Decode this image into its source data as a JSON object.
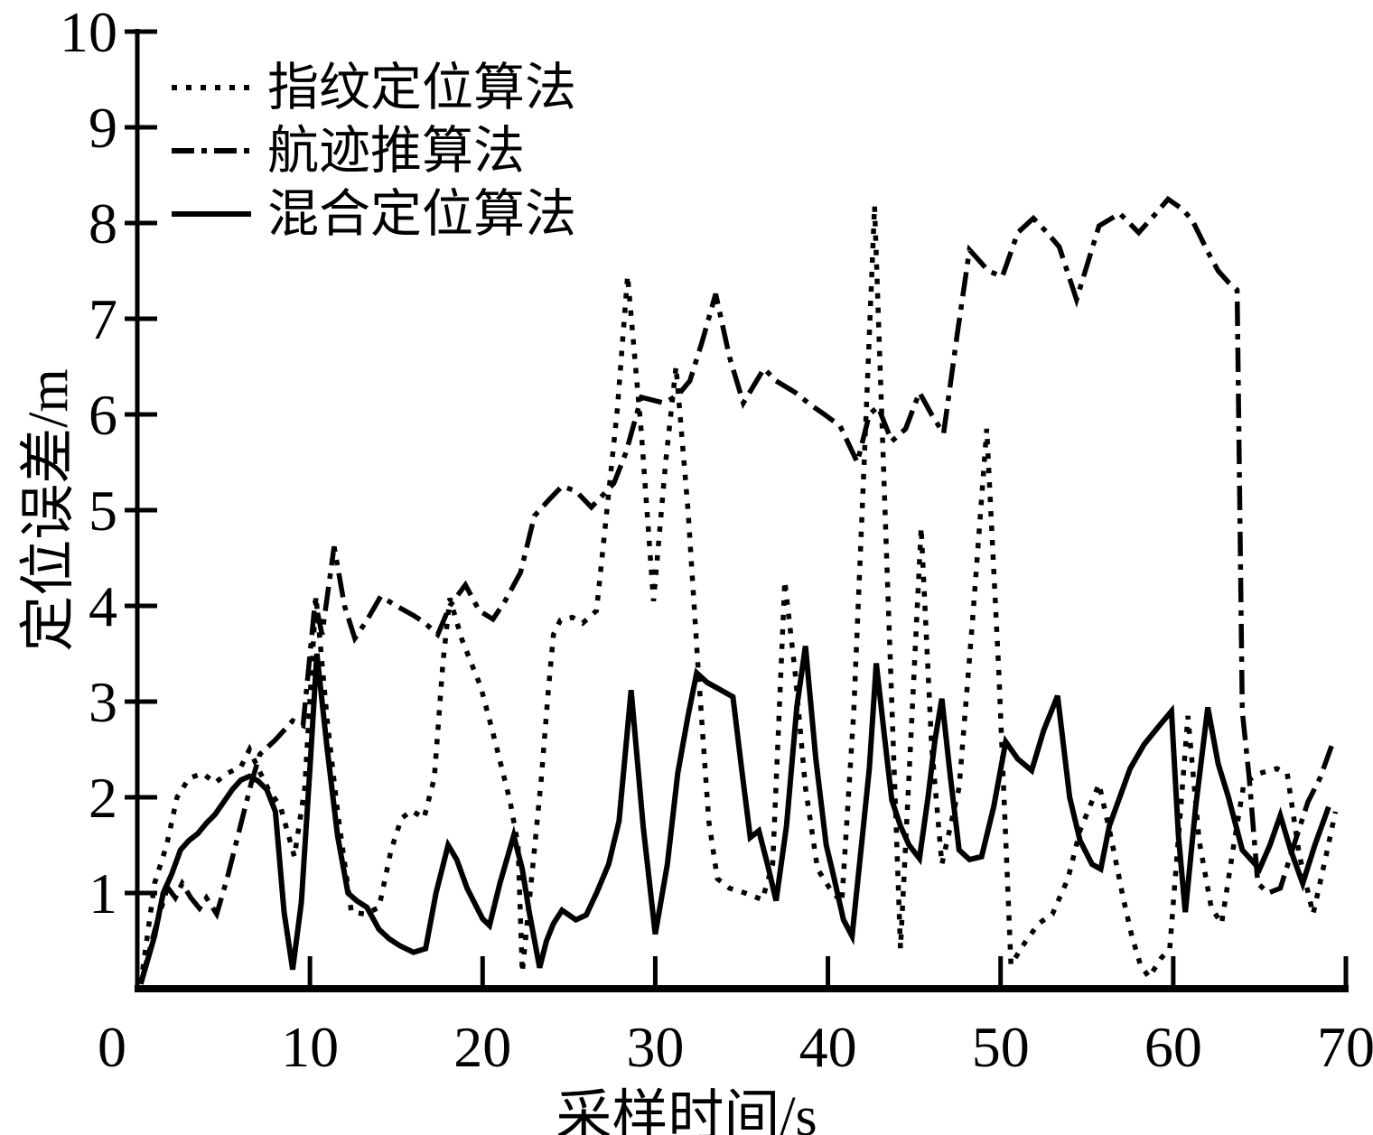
{
  "figure": {
    "background": "#ffffff",
    "line_color": "#000000"
  },
  "chart_data": {
    "type": "line",
    "title": "",
    "xlabel": "采样时间/s",
    "ylabel": "定位误差/m",
    "xlim": [
      0,
      70
    ],
    "ylim": [
      0,
      10
    ],
    "xticks": [
      0,
      10,
      20,
      30,
      40,
      50,
      60,
      70
    ],
    "yticks": [
      1,
      2,
      3,
      4,
      5,
      6,
      7,
      8,
      9,
      10
    ],
    "grid": false,
    "legend_position": "top-left",
    "series": [
      {
        "name": "指纹定位算法",
        "style": "dotted",
        "points": [
          [
            0.2,
            0.05
          ],
          [
            1,
            1.1
          ],
          [
            1.7,
            1.5
          ],
          [
            2.3,
            2.0
          ],
          [
            3,
            2.2
          ],
          [
            3.8,
            2.25
          ],
          [
            4.5,
            2.15
          ],
          [
            5.2,
            2.25
          ],
          [
            6,
            2.32
          ],
          [
            6.5,
            2.5
          ],
          [
            7,
            2.3
          ],
          [
            7.6,
            2.08
          ],
          [
            8.3,
            1.9
          ],
          [
            9.1,
            1.38
          ],
          [
            9.7,
            2.1
          ],
          [
            10.35,
            4.1
          ],
          [
            11,
            2.8
          ],
          [
            11.6,
            1.85
          ],
          [
            12.4,
            0.8
          ],
          [
            13.2,
            0.78
          ],
          [
            14,
            0.85
          ],
          [
            14.7,
            1.45
          ],
          [
            15.3,
            1.78
          ],
          [
            15.9,
            1.86
          ],
          [
            16.6,
            1.78
          ],
          [
            17.2,
            2.2
          ],
          [
            17.7,
            3.4
          ],
          [
            18.1,
            4.08
          ],
          [
            18.8,
            3.65
          ],
          [
            19.9,
            3.15
          ],
          [
            20.7,
            2.6
          ],
          [
            21.6,
            1.95
          ],
          [
            22.05,
            1.5
          ],
          [
            22.3,
            0.17
          ],
          [
            22.75,
            1.0
          ],
          [
            23,
            1.45
          ],
          [
            23.4,
            2.2
          ],
          [
            23.8,
            3.1
          ],
          [
            24.1,
            3.7
          ],
          [
            24.5,
            3.85
          ],
          [
            25.2,
            3.88
          ],
          [
            25.8,
            3.82
          ],
          [
            26.6,
            3.95
          ],
          [
            27.2,
            5.0
          ],
          [
            27.8,
            6.05
          ],
          [
            28.4,
            7.45
          ],
          [
            29.2,
            5.8
          ],
          [
            29.9,
            4.05
          ],
          [
            30.6,
            5.5
          ],
          [
            31.2,
            6.5
          ],
          [
            31.9,
            5.0
          ],
          [
            32.5,
            3.3
          ],
          [
            33.1,
            1.75
          ],
          [
            33.6,
            1.15
          ],
          [
            34.3,
            1.05
          ],
          [
            35.2,
            1.0
          ],
          [
            36.2,
            0.93
          ],
          [
            36.8,
            1.3
          ],
          [
            37.5,
            4.26
          ],
          [
            38.1,
            3.3
          ],
          [
            38.7,
            2.1
          ],
          [
            39.4,
            1.25
          ],
          [
            40.1,
            1.05
          ],
          [
            40.8,
            0.9
          ],
          [
            41.5,
            2.9
          ],
          [
            42.1,
            5.5
          ],
          [
            42.7,
            8.18
          ],
          [
            43.4,
            4.5
          ],
          [
            44.2,
            0.42
          ],
          [
            44.8,
            2.6
          ],
          [
            45.4,
            4.82
          ],
          [
            46,
            2.55
          ],
          [
            46.6,
            1.3
          ],
          [
            47.6,
            2.1
          ],
          [
            48.4,
            3.9
          ],
          [
            49.2,
            5.85
          ],
          [
            49.9,
            3.3
          ],
          [
            50.6,
            0.25
          ],
          [
            51.4,
            0.48
          ],
          [
            52.2,
            0.68
          ],
          [
            53,
            0.78
          ],
          [
            53.9,
            1.15
          ],
          [
            54.6,
            1.65
          ],
          [
            55.7,
            2.14
          ],
          [
            56.4,
            1.58
          ],
          [
            57.1,
            0.95
          ],
          [
            57.6,
            0.55
          ],
          [
            58.1,
            0.25
          ],
          [
            58.6,
            0.12
          ],
          [
            59.3,
            0.32
          ],
          [
            59.8,
            0.42
          ],
          [
            60.85,
            2.85
          ],
          [
            61.5,
            1.55
          ],
          [
            62.2,
            0.85
          ],
          [
            62.8,
            0.68
          ],
          [
            63.5,
            1.5
          ],
          [
            64.1,
            2.15
          ],
          [
            65,
            2.25
          ],
          [
            66,
            2.3
          ],
          [
            66.6,
            2.25
          ],
          [
            67.3,
            1.4
          ],
          [
            68.1,
            0.78
          ],
          [
            68.8,
            1.35
          ],
          [
            69.4,
            1.85
          ]
        ]
      },
      {
        "name": "航迹推算法",
        "style": "dashdot",
        "points": [
          [
            0.2,
            0.05
          ],
          [
            1,
            0.6
          ],
          [
            1.75,
            1.06
          ],
          [
            2.2,
            0.95
          ],
          [
            2.6,
            1.1
          ],
          [
            3.1,
            0.95
          ],
          [
            3.6,
            0.84
          ],
          [
            4,
            0.95
          ],
          [
            4.6,
            0.78
          ],
          [
            5.2,
            1.15
          ],
          [
            5.9,
            1.65
          ],
          [
            6.6,
            2.15
          ],
          [
            7.1,
            2.45
          ],
          [
            8,
            2.6
          ],
          [
            9,
            2.8
          ],
          [
            9.6,
            2.75
          ],
          [
            10.3,
            4.05
          ],
          [
            10.7,
            3.7
          ],
          [
            11.4,
            4.62
          ],
          [
            12,
            4.0
          ],
          [
            12.6,
            3.66
          ],
          [
            13.3,
            3.85
          ],
          [
            14.1,
            4.1
          ],
          [
            15,
            4.0
          ],
          [
            16,
            3.9
          ],
          [
            16.6,
            3.83
          ],
          [
            17.4,
            3.7
          ],
          [
            18.1,
            4.0
          ],
          [
            19,
            4.22
          ],
          [
            19.8,
            3.95
          ],
          [
            20.6,
            3.86
          ],
          [
            21.3,
            4.05
          ],
          [
            22.2,
            4.35
          ],
          [
            23,
            4.94
          ],
          [
            23.8,
            5.1
          ],
          [
            24.6,
            5.25
          ],
          [
            25.4,
            5.2
          ],
          [
            26.3,
            5.03
          ],
          [
            27.6,
            5.28
          ],
          [
            28.3,
            5.6
          ],
          [
            29.2,
            6.18
          ],
          [
            30.5,
            6.12
          ],
          [
            31.3,
            6.2
          ],
          [
            32,
            6.35
          ],
          [
            32.7,
            6.75
          ],
          [
            33.5,
            7.26
          ],
          [
            34.3,
            6.6
          ],
          [
            35.1,
            6.12
          ],
          [
            36.3,
            6.48
          ],
          [
            37,
            6.35
          ],
          [
            38.1,
            6.23
          ],
          [
            39,
            6.1
          ],
          [
            39.8,
            6.0
          ],
          [
            40.7,
            5.88
          ],
          [
            41.7,
            5.5
          ],
          [
            42.4,
            6.0
          ],
          [
            42.9,
            6.08
          ],
          [
            43.7,
            5.72
          ],
          [
            44.5,
            5.85
          ],
          [
            45.3,
            6.23
          ],
          [
            46,
            6.0
          ],
          [
            46.7,
            5.8
          ],
          [
            47.5,
            6.85
          ],
          [
            48.2,
            7.72
          ],
          [
            49.3,
            7.5
          ],
          [
            50.1,
            7.44
          ],
          [
            51,
            7.9
          ],
          [
            51.9,
            8.05
          ],
          [
            52.7,
            7.9
          ],
          [
            53.4,
            7.75
          ],
          [
            54.4,
            7.2
          ],
          [
            55.7,
            7.97
          ],
          [
            56.9,
            8.1
          ],
          [
            58,
            7.9
          ],
          [
            59,
            8.1
          ],
          [
            59.7,
            8.25
          ],
          [
            60.5,
            8.15
          ],
          [
            61.1,
            8.03
          ],
          [
            62,
            7.7
          ],
          [
            62.6,
            7.5
          ],
          [
            63.2,
            7.38
          ],
          [
            63.7,
            7.3
          ],
          [
            64,
            2.9
          ],
          [
            64.4,
            2.2
          ],
          [
            64.9,
            1.1
          ],
          [
            65.5,
            1.0
          ],
          [
            66.2,
            1.05
          ],
          [
            66.9,
            1.45
          ],
          [
            67.8,
            1.95
          ],
          [
            68.5,
            2.2
          ],
          [
            69.2,
            2.55
          ]
        ]
      },
      {
        "name": "混合定位算法",
        "style": "solid",
        "points": [
          [
            0.2,
            0.05
          ],
          [
            1,
            0.55
          ],
          [
            1.5,
            1.0
          ],
          [
            2,
            1.2
          ],
          [
            2.5,
            1.45
          ],
          [
            3,
            1.55
          ],
          [
            3.5,
            1.62
          ],
          [
            4,
            1.73
          ],
          [
            4.5,
            1.82
          ],
          [
            5,
            1.95
          ],
          [
            5.5,
            2.08
          ],
          [
            6,
            2.18
          ],
          [
            6.5,
            2.22
          ],
          [
            7,
            2.17
          ],
          [
            7.5,
            2.08
          ],
          [
            8,
            1.85
          ],
          [
            8.5,
            0.8
          ],
          [
            9,
            0.2
          ],
          [
            9.5,
            0.9
          ],
          [
            10,
            2.3
          ],
          [
            10.4,
            3.5
          ],
          [
            11,
            2.5
          ],
          [
            11.6,
            1.6
          ],
          [
            12.2,
            1.0
          ],
          [
            12.7,
            0.92
          ],
          [
            13.3,
            0.85
          ],
          [
            14,
            0.62
          ],
          [
            14.6,
            0.52
          ],
          [
            15.2,
            0.45
          ],
          [
            16,
            0.38
          ],
          [
            16.7,
            0.42
          ],
          [
            17.3,
            1.0
          ],
          [
            18,
            1.5
          ],
          [
            18.5,
            1.35
          ],
          [
            19.1,
            1.05
          ],
          [
            20,
            0.73
          ],
          [
            20.4,
            0.66
          ],
          [
            21,
            1.1
          ],
          [
            21.8,
            1.6
          ],
          [
            22.3,
            1.25
          ],
          [
            22.7,
            0.8
          ],
          [
            23.3,
            0.22
          ],
          [
            23.7,
            0.5
          ],
          [
            24.1,
            0.68
          ],
          [
            24.6,
            0.82
          ],
          [
            25,
            0.77
          ],
          [
            25.4,
            0.72
          ],
          [
            26,
            0.77
          ],
          [
            26.6,
            1.0
          ],
          [
            27.3,
            1.3
          ],
          [
            27.9,
            1.75
          ],
          [
            28.6,
            3.12
          ],
          [
            29.3,
            1.7
          ],
          [
            30,
            0.57
          ],
          [
            30.7,
            1.3
          ],
          [
            31.3,
            2.25
          ],
          [
            31.9,
            2.85
          ],
          [
            32.4,
            3.3
          ],
          [
            33,
            3.2
          ],
          [
            33.8,
            3.12
          ],
          [
            34.5,
            3.05
          ],
          [
            35,
            2.3
          ],
          [
            35.5,
            1.58
          ],
          [
            36,
            1.65
          ],
          [
            36.5,
            1.3
          ],
          [
            37,
            0.92
          ],
          [
            37.6,
            1.7
          ],
          [
            38.2,
            2.95
          ],
          [
            38.7,
            3.58
          ],
          [
            39.3,
            2.4
          ],
          [
            39.9,
            1.5
          ],
          [
            40.3,
            1.2
          ],
          [
            40.9,
            0.72
          ],
          [
            41.4,
            0.55
          ],
          [
            42,
            1.6
          ],
          [
            42.4,
            2.3
          ],
          [
            42.8,
            3.4
          ],
          [
            43.3,
            2.6
          ],
          [
            43.7,
            1.97
          ],
          [
            44.2,
            1.7
          ],
          [
            44.7,
            1.5
          ],
          [
            45.3,
            1.36
          ],
          [
            45.8,
            2.0
          ],
          [
            46.2,
            2.6
          ],
          [
            46.6,
            3.03
          ],
          [
            47.1,
            2.2
          ],
          [
            47.6,
            1.45
          ],
          [
            48.2,
            1.35
          ],
          [
            48.9,
            1.38
          ],
          [
            49.6,
            1.9
          ],
          [
            50.3,
            2.58
          ],
          [
            51,
            2.4
          ],
          [
            51.8,
            2.28
          ],
          [
            52.5,
            2.7
          ],
          [
            53.3,
            3.06
          ],
          [
            54,
            2.0
          ],
          [
            54.6,
            1.55
          ],
          [
            55.3,
            1.3
          ],
          [
            55.8,
            1.25
          ],
          [
            56.3,
            1.7
          ],
          [
            56.9,
            2.0
          ],
          [
            57.5,
            2.3
          ],
          [
            58.3,
            2.55
          ],
          [
            59.2,
            2.75
          ],
          [
            59.9,
            2.9
          ],
          [
            60.3,
            1.6
          ],
          [
            60.7,
            0.8
          ],
          [
            61.3,
            1.9
          ],
          [
            62,
            2.94
          ],
          [
            62.6,
            2.35
          ],
          [
            63.2,
            2.0
          ],
          [
            64,
            1.45
          ],
          [
            65,
            1.25
          ],
          [
            65.6,
            1.5
          ],
          [
            66.2,
            1.81
          ],
          [
            66.8,
            1.45
          ],
          [
            67.5,
            1.1
          ],
          [
            68.2,
            1.5
          ],
          [
            69,
            1.9
          ]
        ]
      }
    ]
  }
}
